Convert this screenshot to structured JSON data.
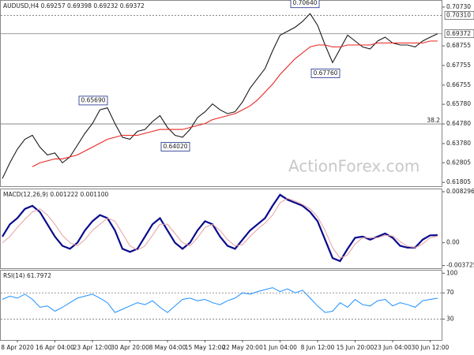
{
  "chart_data": [
    {
      "type": "line",
      "title": "AUDUSD,H4  0.69257 0.69398 0.69232 0.69372",
      "watermark": "ActionForex.com",
      "ylim": [
        0.6161,
        0.7105
      ],
      "yticks": [
        {
          "value": 0.7073,
          "label": "0.70730"
        },
        {
          "value": 0.68755,
          "label": "0.68755"
        },
        {
          "value": 0.67755,
          "label": "0.67755"
        },
        {
          "value": 0.66755,
          "label": "0.66755"
        },
        {
          "value": 0.6578,
          "label": "0.65780"
        },
        {
          "value": 0.6478,
          "label": "0.64780"
        },
        {
          "value": 0.6378,
          "label": "0.63780"
        },
        {
          "value": 0.62805,
          "label": "0.62805"
        },
        {
          "value": 0.61805,
          "label": "0.61805"
        }
      ],
      "levels": [
        {
          "value": 0.7031,
          "label": "0.70310",
          "style": "dotted",
          "boxed": true
        },
        {
          "value": 0.69372,
          "label": "0.69372",
          "style": "solid",
          "boxed": true
        },
        {
          "value": 0.6478,
          "label": "38.2",
          "style": "solid",
          "boxed": false
        }
      ],
      "annotations": [
        {
          "value": 0.7064,
          "label": "0.70640"
        },
        {
          "value": 0.6776,
          "label": "0.67760"
        },
        {
          "value": 0.6569,
          "label": "0.65690"
        },
        {
          "value": 0.6402,
          "label": "0.64020"
        }
      ],
      "series": [
        {
          "color": "#1a1a1a",
          "values": [
            0.62,
            0.628,
            0.635,
            0.64,
            0.642,
            0.636,
            0.632,
            0.633,
            0.628,
            0.631,
            0.637,
            0.643,
            0.648,
            0.655,
            0.656,
            0.648,
            0.641,
            0.64,
            0.644,
            0.645,
            0.649,
            0.652,
            0.646,
            0.642,
            0.641,
            0.645,
            0.651,
            0.654,
            0.658,
            0.655,
            0.653,
            0.654,
            0.659,
            0.666,
            0.671,
            0.676,
            0.685,
            0.693,
            0.695,
            0.697,
            0.7,
            0.704,
            0.698,
            0.688,
            0.679,
            0.686,
            0.693,
            0.69,
            0.687,
            0.686,
            0.69,
            0.692,
            0.689,
            0.688,
            0.688,
            0.687,
            0.69,
            0.692,
            0.69372
          ]
        },
        {
          "color": "#e8251f",
          "values": [
            null,
            null,
            null,
            null,
            0.626,
            0.628,
            0.629,
            0.63,
            0.63,
            0.631,
            0.632,
            0.634,
            0.636,
            0.638,
            0.64,
            0.641,
            0.642,
            0.642,
            0.642,
            0.643,
            0.644,
            0.645,
            0.645,
            0.645,
            0.645,
            0.646,
            0.647,
            0.648,
            0.65,
            0.651,
            0.652,
            0.653,
            0.655,
            0.657,
            0.66,
            0.664,
            0.668,
            0.673,
            0.677,
            0.681,
            0.684,
            0.687,
            0.688,
            0.688,
            0.687,
            0.687,
            0.688,
            0.688,
            0.688,
            0.688,
            0.689,
            0.689,
            0.689,
            0.689,
            0.689,
            0.689,
            0.689,
            0.69,
            0.69
          ]
        },
        {
          "color": "#333333",
          "dash": "4 3",
          "values": [
            null,
            null,
            null,
            null,
            null,
            null,
            null,
            null,
            null,
            null,
            0.617,
            null,
            null,
            null,
            null,
            null,
            null,
            null,
            null,
            null,
            null,
            null,
            null,
            null,
            null,
            null,
            null,
            null,
            null,
            null,
            null,
            null,
            null,
            null,
            null,
            null,
            null,
            null,
            null,
            null,
            null,
            0.705,
            null,
            null,
            null,
            null,
            null,
            null,
            null,
            null,
            null,
            null,
            null,
            null,
            null,
            null,
            null,
            null,
            null
          ]
        }
      ]
    },
    {
      "type": "line",
      "title": "MACD(12,26,9) 0.001222 0.001100",
      "ylim": [
        -0.00415,
        0.00868
      ],
      "yticks": [
        0.008296,
        {
          "value": 0,
          "label": "0.00"
        },
        -0.003725
      ],
      "series": [
        {
          "color": "#0a0a8c",
          "width": 2.2,
          "values": [
            0.001,
            0.003,
            0.004,
            0.0055,
            0.006,
            0.005,
            0.003,
            0.001,
            -0.0005,
            -0.001,
            0.0,
            0.002,
            0.0035,
            0.0045,
            0.004,
            0.002,
            -0.001,
            -0.0015,
            -0.001,
            0.001,
            0.003,
            0.004,
            0.002,
            0.0,
            -0.001,
            0.0,
            0.002,
            0.0035,
            0.003,
            0.001,
            -0.0005,
            -0.001,
            0.0005,
            0.002,
            0.003,
            0.004,
            0.006,
            0.0078,
            0.007,
            0.0065,
            0.006,
            0.005,
            0.0035,
            0.0005,
            -0.0025,
            -0.003,
            -0.001,
            0.0008,
            0.001,
            0.0005,
            0.001,
            0.0015,
            0.0008,
            -0.0005,
            -0.0008,
            -0.0008,
            0.0005,
            0.0012,
            0.001222
          ]
        },
        {
          "color": "#e8a0a0",
          "width": 1,
          "values": [
            0.0,
            0.001,
            0.0025,
            0.0038,
            0.005,
            0.0055,
            0.0045,
            0.003,
            0.0012,
            0.0,
            -0.0005,
            0.0005,
            0.002,
            0.003,
            0.004,
            0.0035,
            0.0015,
            -0.0005,
            -0.0012,
            -0.0005,
            0.0012,
            0.003,
            0.003,
            0.0015,
            0.0,
            -0.0005,
            0.0008,
            0.0025,
            0.003,
            0.002,
            0.0005,
            -0.0005,
            -0.0003,
            0.001,
            0.0022,
            0.0032,
            0.0045,
            0.0065,
            0.0072,
            0.0068,
            0.0062,
            0.0055,
            0.0042,
            0.002,
            -0.0008,
            -0.0025,
            -0.002,
            -0.0002,
            0.0008,
            0.0008,
            0.0008,
            0.0012,
            0.0011,
            0.0002,
            -0.0006,
            -0.0008,
            -0.0002,
            0.0008,
            0.0011
          ]
        }
      ]
    },
    {
      "type": "line",
      "title": "RSI(14) 61.7972",
      "ylim": [
        -2,
        104
      ],
      "yticks": [
        100,
        70,
        30
      ],
      "levels": [
        70,
        30
      ],
      "categories": [
        null,
        null,
        "8 Apr 2020",
        null,
        null,
        null,
        null,
        "16 Apr 04:00",
        null,
        null,
        null,
        null,
        "23 Apr 12:00",
        null,
        null,
        null,
        null,
        "30 Apr 20:00",
        null,
        null,
        null,
        null,
        "8 May 04:00",
        null,
        null,
        null,
        null,
        "15 May 12:00",
        null,
        null,
        null,
        null,
        "22 May 20:00",
        null,
        null,
        null,
        null,
        "1 Jun 04:00",
        null,
        null,
        null,
        null,
        "8 Jun 12:00",
        null,
        null,
        null,
        null,
        "15 Jun 20:00",
        null,
        null,
        null,
        null,
        "23 Jun 04:00",
        null,
        null,
        null,
        null,
        "30 Jun 12:00",
        null
      ],
      "series": [
        {
          "color": "#1e90ff",
          "width": 1,
          "values": [
            60,
            65,
            62,
            68,
            60,
            48,
            50,
            42,
            48,
            55,
            62,
            65,
            68,
            62,
            55,
            40,
            45,
            50,
            55,
            52,
            58,
            48,
            40,
            50,
            60,
            62,
            58,
            60,
            55,
            52,
            58,
            62,
            70,
            68,
            72,
            75,
            78,
            72,
            76,
            70,
            74,
            62,
            50,
            40,
            42,
            55,
            48,
            60,
            52,
            50,
            58,
            60,
            50,
            55,
            52,
            48,
            58,
            60,
            61.7972
          ]
        }
      ]
    }
  ]
}
